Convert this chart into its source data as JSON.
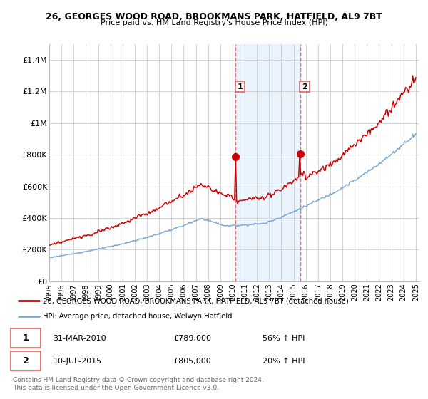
{
  "title": "26, GEORGES WOOD ROAD, BROOKMANS PARK, HATFIELD, AL9 7BT",
  "subtitle": "Price paid vs. HM Land Registry's House Price Index (HPI)",
  "legend_line1": "26, GEORGES WOOD ROAD, BROOKMANS PARK, HATFIELD, AL9 7BT (detached house)",
  "legend_line2": "HPI: Average price, detached house, Welwyn Hatfield",
  "sale1_date": "31-MAR-2010",
  "sale1_price": "£789,000",
  "sale1_hpi": "56% ↑ HPI",
  "sale2_date": "10-JUL-2015",
  "sale2_price": "£805,000",
  "sale2_hpi": "20% ↑ HPI",
  "footnote": "Contains HM Land Registry data © Crown copyright and database right 2024.\nThis data is licensed under the Open Government Licence v3.0.",
  "red_color": "#cc0000",
  "blue_color": "#7aa8d2",
  "shade_color": "#ddeeff",
  "vline_color": "#e06060",
  "ylim": [
    0,
    1500000
  ],
  "yticks": [
    0,
    200000,
    400000,
    600000,
    800000,
    1000000,
    1200000,
    1400000
  ],
  "ytick_labels": [
    "£0",
    "£200K",
    "£400K",
    "£600K",
    "£800K",
    "£1M",
    "£1.2M",
    "£1.4M"
  ],
  "sale1_year": 2010.25,
  "sale1_price_val": 789000,
  "sale2_year": 2015.53,
  "sale2_price_val": 805000
}
